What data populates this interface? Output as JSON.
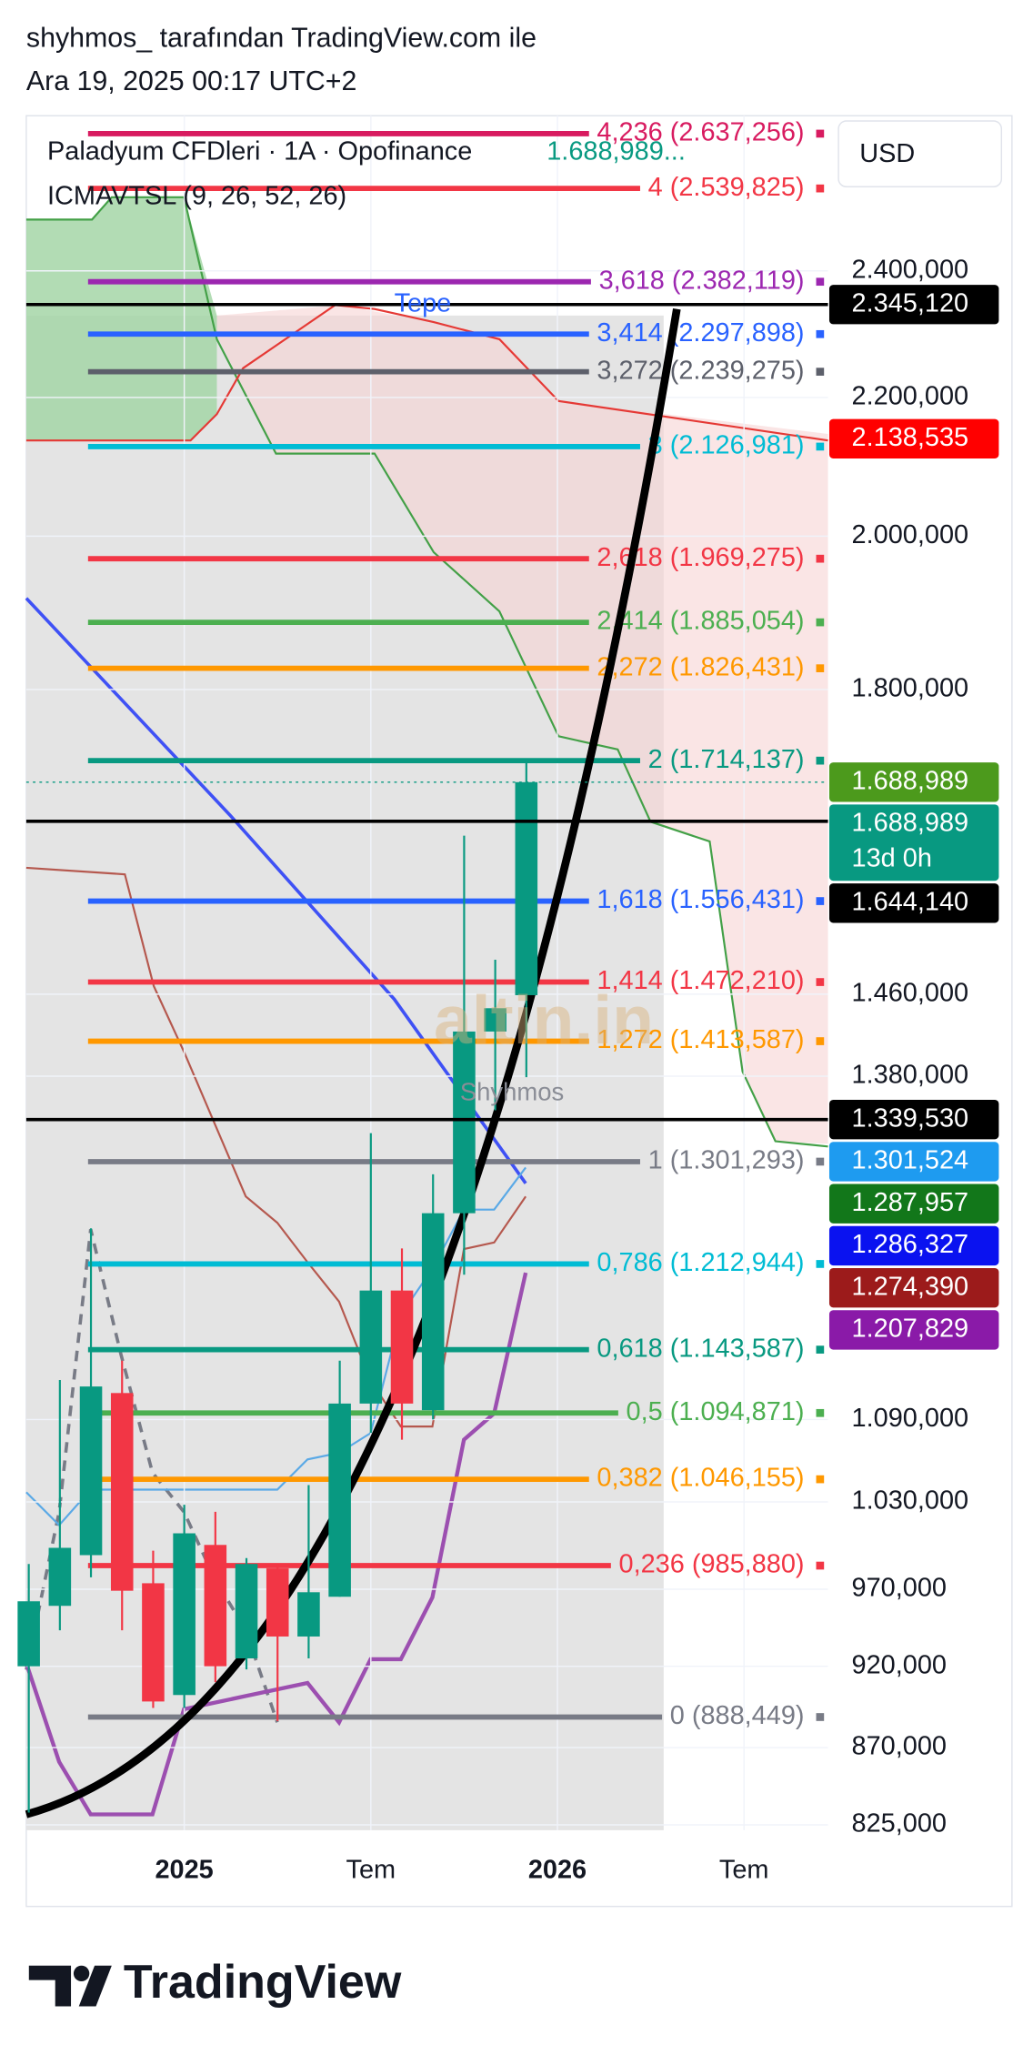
{
  "header": {
    "author_line": "shyhmos_ tarafından TradingView.com ile",
    "date_line": "Ara 19, 2025 00:17 UTC+2"
  },
  "legend": {
    "symbol": "Paladyum CFDleri · 1A · Opofinance",
    "last_price": "1.688,989...",
    "indicator": "ICMAVTSL (9, 26, 52, 26)"
  },
  "currency_button": "USD",
  "chart_data": {
    "type": "candlestick",
    "y_scale": "log",
    "open": [
      920000,
      959000,
      993000,
      1110000,
      974000,
      902000,
      1000000,
      925000,
      984000,
      939000,
      965000,
      1102000,
      1191000,
      1097000,
      1256000,
      1423000,
      1459000
    ],
    "high": [
      987000,
      1120000,
      1243000,
      1135000,
      996000,
      1028000,
      1023000,
      991000,
      987000,
      1042000,
      1135000,
      1327000,
      1226000,
      1290000,
      1628000,
      1495000,
      1712000
    ],
    "low": [
      832000,
      943000,
      978000,
      943000,
      894000,
      894000,
      910000,
      918000,
      886000,
      925000,
      965000,
      1080000,
      1075000,
      1090000,
      1204000,
      1348000,
      1379000
    ],
    "close": [
      962000,
      998000,
      1115000,
      969000,
      898000,
      1008000,
      920000,
      987000,
      939000,
      968000,
      1102000,
      1191000,
      1102000,
      1256000,
      1423000,
      1446000,
      1688989
    ],
    "colors": {
      "up": "#089981",
      "down": "#f23645"
    },
    "xlim": [
      -0.08,
      25.7
    ],
    "xticks": [
      {
        "value": 5,
        "label": "2025"
      },
      {
        "value": 11,
        "label": "Tem"
      },
      {
        "value": 17,
        "label": "2026"
      },
      {
        "value": 23,
        "label": "Tem"
      }
    ],
    "ylim": [
      822000,
      2670000
    ],
    "yticks": [
      {
        "value": 2400000,
        "label": "2.400,000"
      },
      {
        "value": 2200000,
        "label": "2.200,000"
      },
      {
        "value": 2000000,
        "label": "2.000,000"
      },
      {
        "value": 1800000,
        "label": "1.800,000"
      },
      {
        "value": 1460000,
        "label": "1.460,000"
      },
      {
        "value": 1380000,
        "label": "1.380,000"
      },
      {
        "value": 1090000,
        "label": "1.090,000"
      },
      {
        "value": 1030000,
        "label": "1.030,000"
      },
      {
        "value": 970000,
        "label": "970,000"
      },
      {
        "value": 920000,
        "label": "920,000"
      },
      {
        "value": 870000,
        "label": "870,000"
      },
      {
        "value": 825000,
        "label": "825,000"
      }
    ],
    "grid": true,
    "fib_levels": [
      {
        "value": 2637256,
        "label": "4,236 (2.637,256)",
        "color": "#d81b60"
      },
      {
        "value": 2539825,
        "label": "4 (2.539,825)",
        "color": "#f23645"
      },
      {
        "value": 2382119,
        "label": "3,618 (2.382,119)",
        "color": "#9c27b0"
      },
      {
        "value": 2297898,
        "label": "3,414 (2.297,898)",
        "color": "#2962ff"
      },
      {
        "value": 2239275,
        "label": "3,272 (2.239,275)",
        "color": "#5d606b"
      },
      {
        "value": 2126981,
        "label": "3 (2.126,981)",
        "color": "#00bcd4"
      },
      {
        "value": 1969275,
        "label": "2,618 (1.969,275)",
        "color": "#f23645"
      },
      {
        "value": 1885054,
        "label": "2,414 (1.885,054)",
        "color": "#4caf50"
      },
      {
        "value": 1826431,
        "label": "2,272 (1.826,431)",
        "color": "#ff9800"
      },
      {
        "value": 1714137,
        "label": "2 (1.714,137)",
        "color": "#089981"
      },
      {
        "value": 1556431,
        "label": "1,618 (1.556,431)",
        "color": "#2962ff"
      },
      {
        "value": 1472210,
        "label": "1,414 (1.472,210)",
        "color": "#f23645"
      },
      {
        "value": 1413587,
        "label": "1,272 (1.413,587)",
        "color": "#ff9800"
      },
      {
        "value": 1301293,
        "label": "1 (1.301,293)",
        "color": "#787b86"
      },
      {
        "value": 1212944,
        "label": "0,786 (1.212,944)",
        "color": "#00bcd4"
      },
      {
        "value": 1143587,
        "label": "0,618 (1.143,587)",
        "color": "#089981"
      },
      {
        "value": 1094871,
        "label": "0,5 (1.094,871)",
        "color": "#4caf50"
      },
      {
        "value": 1046155,
        "label": "0,382 (1.046,155)",
        "color": "#ff9800"
      },
      {
        "value": 985880,
        "label": "0,236 (985,880)",
        "color": "#f23645"
      },
      {
        "value": 888449,
        "label": "0 (888,449)",
        "color": "#787b86"
      }
    ],
    "price_badges": [
      {
        "value": 2345120,
        "label": "2.345,120",
        "color": "#000000",
        "line": "solid"
      },
      {
        "value": 2138535,
        "label": "2.138,535",
        "color": "#ff0000"
      },
      {
        "value": 1688989,
        "label": "1.688,989",
        "color": "#4c9a1c"
      },
      {
        "value": 1688989,
        "label": "1.688,989",
        "sublabel": "13d 0h",
        "color": "#089981",
        "line": "dotted"
      },
      {
        "value": 1644140,
        "label": "1.644,140",
        "color": "#000000",
        "line": "solid"
      },
      {
        "value": 1339530,
        "label": "1.339,530",
        "color": "#000000",
        "line": "solid"
      },
      {
        "value": 1301524,
        "label": "1.301,524",
        "color": "#1e9bf0"
      },
      {
        "value": 1287957,
        "label": "1.287,957",
        "color": "#12771a"
      },
      {
        "value": 1286327,
        "label": "1.286,327",
        "color": "#0a12f0"
      },
      {
        "value": 1274390,
        "label": "1.274,390",
        "color": "#9c1b1b"
      },
      {
        "value": 1207829,
        "label": "1.207,829",
        "color": "#8a1aa8"
      }
    ],
    "annotations": [
      {
        "text": "Tepe",
        "value": 2345120
      }
    ],
    "watermark_logo": "altin.in",
    "watermark_text": "Shyhmos"
  },
  "footer": {
    "brand": "TradingView"
  }
}
